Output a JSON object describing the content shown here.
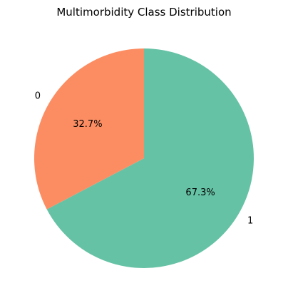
{
  "chart_data": {
    "type": "pie",
    "title": "Multimorbidity Class Distribution",
    "slices": [
      {
        "label": "1",
        "percent": 67.3,
        "pct_label": "67.3%",
        "color": "#66c2a5"
      },
      {
        "label": "0",
        "percent": 32.7,
        "pct_label": "32.7%",
        "color": "#fc8d62"
      }
    ],
    "start_angle_deg": 90,
    "direction": "clockwise",
    "legend": "none"
  }
}
